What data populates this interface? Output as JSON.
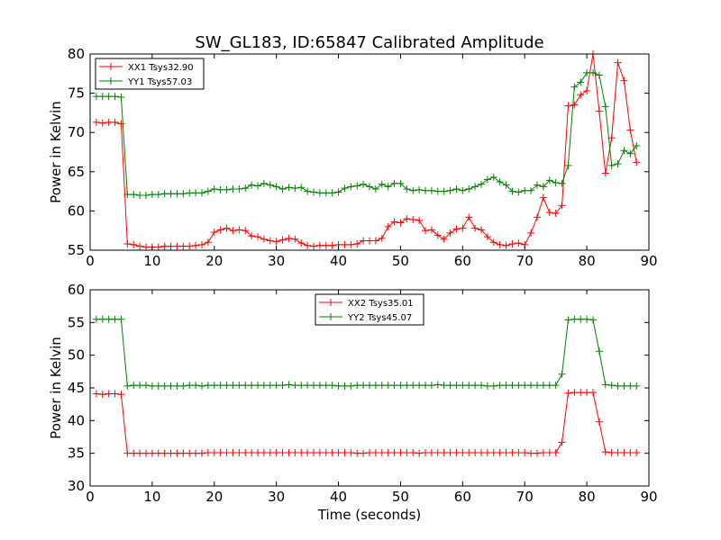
{
  "figure": {
    "title": "SW_GL183, ID:65847 Calibrated Amplitude",
    "xlabel": "Time (seconds)"
  },
  "chart_data": [
    {
      "type": "line",
      "title": "SW_GL183, ID:65847 Calibrated Amplitude",
      "xlabel": "",
      "ylabel": "Power in Kelvin",
      "xlim": [
        0,
        90
      ],
      "ylim": [
        55,
        80
      ],
      "xticks": [
        0,
        10,
        20,
        30,
        40,
        50,
        60,
        70,
        80,
        90
      ],
      "yticks": [
        55,
        60,
        65,
        70,
        75,
        80
      ],
      "grid": false,
      "legend_position": "top-left",
      "x": [
        1,
        2,
        3,
        4,
        5,
        6,
        7,
        8,
        9,
        10,
        11,
        12,
        13,
        14,
        15,
        16,
        17,
        18,
        19,
        20,
        21,
        22,
        23,
        24,
        25,
        26,
        27,
        28,
        29,
        30,
        31,
        32,
        33,
        34,
        35,
        36,
        37,
        38,
        39,
        40,
        41,
        42,
        43,
        44,
        45,
        46,
        47,
        48,
        49,
        50,
        51,
        52,
        53,
        54,
        55,
        56,
        57,
        58,
        59,
        60,
        61,
        62,
        63,
        64,
        65,
        66,
        67,
        68,
        69,
        70,
        71,
        72,
        73,
        74,
        75,
        76,
        77,
        78,
        79,
        80,
        81,
        82,
        83,
        84,
        85,
        86,
        87,
        88
      ],
      "series": [
        {
          "name": "XX1 Tsys32.90",
          "color": "#ff0000",
          "values": [
            71.3,
            71.2,
            71.3,
            71.3,
            71.1,
            55.8,
            55.7,
            55.5,
            55.4,
            55.4,
            55.4,
            55.5,
            55.5,
            55.5,
            55.5,
            55.5,
            55.6,
            55.7,
            56.0,
            57.3,
            57.6,
            57.8,
            57.5,
            57.6,
            57.5,
            56.8,
            56.7,
            56.4,
            56.2,
            56.1,
            56.3,
            56.5,
            56.4,
            55.9,
            55.6,
            55.5,
            55.6,
            55.6,
            55.6,
            55.7,
            55.7,
            55.7,
            55.8,
            56.2,
            56.2,
            56.2,
            56.5,
            58.0,
            58.6,
            58.5,
            59.0,
            58.9,
            58.8,
            57.5,
            57.6,
            56.9,
            56.4,
            57.2,
            57.7,
            57.8,
            59.2,
            57.8,
            57.6,
            56.7,
            56.0,
            55.7,
            55.6,
            55.8,
            55.9,
            55.7,
            57.2,
            59.2,
            61.7,
            59.8,
            59.7,
            60.7,
            73.4,
            73.5,
            74.8,
            75.3,
            80.0,
            72.7,
            64.8,
            69.3,
            78.9,
            76.6,
            70.3,
            66.2
          ]
        },
        {
          "name": "YY1 Tsys57.03",
          "color": "#008000",
          "values": [
            74.6,
            74.6,
            74.6,
            74.6,
            74.5,
            62.1,
            62.1,
            62.0,
            62.0,
            62.1,
            62.1,
            62.2,
            62.2,
            62.2,
            62.2,
            62.3,
            62.3,
            62.3,
            62.5,
            62.8,
            62.7,
            62.7,
            62.8,
            62.8,
            62.9,
            63.3,
            63.2,
            63.5,
            63.3,
            63.1,
            62.8,
            63.0,
            62.9,
            63.0,
            62.5,
            62.4,
            62.3,
            62.3,
            62.3,
            62.4,
            62.9,
            63.1,
            63.2,
            63.4,
            63.1,
            62.8,
            63.4,
            63.1,
            63.5,
            63.5,
            62.8,
            62.6,
            62.7,
            62.6,
            62.6,
            62.5,
            62.5,
            62.6,
            62.8,
            62.6,
            62.8,
            63.1,
            63.4,
            64.0,
            64.3,
            63.7,
            63.3,
            62.5,
            62.4,
            62.6,
            62.6,
            63.3,
            63.1,
            63.9,
            63.6,
            63.5,
            65.8,
            75.8,
            76.4,
            77.6,
            77.6,
            77.3,
            73.3,
            65.8,
            66.0,
            67.7,
            67.3,
            68.3
          ]
        }
      ]
    },
    {
      "type": "line",
      "title": "",
      "xlabel": "Time (seconds)",
      "ylabel": "Power in Kelvin",
      "xlim": [
        0,
        90
      ],
      "ylim": [
        30,
        60
      ],
      "xticks": [
        0,
        10,
        20,
        30,
        40,
        50,
        60,
        70,
        80,
        90
      ],
      "yticks": [
        30,
        35,
        40,
        45,
        50,
        55,
        60
      ],
      "grid": false,
      "legend_position": "top-center",
      "x": [
        1,
        2,
        3,
        4,
        5,
        6,
        7,
        8,
        9,
        10,
        11,
        12,
        13,
        14,
        15,
        16,
        17,
        18,
        19,
        20,
        21,
        22,
        23,
        24,
        25,
        26,
        27,
        28,
        29,
        30,
        31,
        32,
        33,
        34,
        35,
        36,
        37,
        38,
        39,
        40,
        41,
        42,
        43,
        44,
        45,
        46,
        47,
        48,
        49,
        50,
        51,
        52,
        53,
        54,
        55,
        56,
        57,
        58,
        59,
        60,
        61,
        62,
        63,
        64,
        65,
        66,
        67,
        68,
        69,
        70,
        71,
        72,
        73,
        74,
        75,
        76,
        77,
        78,
        79,
        80,
        81,
        82,
        83,
        84,
        85,
        86,
        87,
        88
      ],
      "series": [
        {
          "name": "XX2 Tsys35.01",
          "color": "#ff0000",
          "values": [
            44.1,
            44.0,
            44.1,
            44.1,
            44.0,
            35.0,
            35.0,
            35.0,
            35.0,
            35.0,
            35.0,
            35.0,
            35.0,
            35.0,
            35.0,
            35.0,
            35.0,
            35.0,
            35.1,
            35.1,
            35.1,
            35.1,
            35.1,
            35.1,
            35.1,
            35.1,
            35.1,
            35.1,
            35.1,
            35.1,
            35.1,
            35.1,
            35.1,
            35.1,
            35.1,
            35.1,
            35.1,
            35.1,
            35.1,
            35.1,
            35.1,
            35.1,
            35.0,
            35.0,
            35.1,
            35.1,
            35.1,
            35.1,
            35.1,
            35.1,
            35.1,
            35.1,
            35.0,
            35.1,
            35.1,
            35.1,
            35.1,
            35.1,
            35.1,
            35.1,
            35.1,
            35.1,
            35.1,
            35.1,
            35.1,
            35.1,
            35.1,
            35.1,
            35.1,
            35.1,
            35.0,
            35.0,
            35.1,
            35.1,
            35.1,
            36.7,
            44.2,
            44.3,
            44.3,
            44.3,
            44.3,
            39.8,
            35.2,
            35.1,
            35.1,
            35.1,
            35.1,
            35.1
          ]
        },
        {
          "name": "YY2 Tsys45.07",
          "color": "#008000",
          "values": [
            55.5,
            55.5,
            55.5,
            55.5,
            55.5,
            45.3,
            45.4,
            45.4,
            45.4,
            45.3,
            45.3,
            45.3,
            45.3,
            45.3,
            45.3,
            45.4,
            45.4,
            45.3,
            45.4,
            45.4,
            45.4,
            45.4,
            45.4,
            45.4,
            45.4,
            45.4,
            45.4,
            45.4,
            45.4,
            45.4,
            45.4,
            45.5,
            45.4,
            45.4,
            45.4,
            45.4,
            45.4,
            45.4,
            45.4,
            45.3,
            45.3,
            45.3,
            45.4,
            45.4,
            45.4,
            45.4,
            45.4,
            45.4,
            45.4,
            45.4,
            45.4,
            45.4,
            45.4,
            45.4,
            45.4,
            45.5,
            45.4,
            45.4,
            45.4,
            45.4,
            45.4,
            45.4,
            45.4,
            45.3,
            45.3,
            45.4,
            45.4,
            45.4,
            45.4,
            45.4,
            45.4,
            45.4,
            45.4,
            45.4,
            45.4,
            47.1,
            55.4,
            55.5,
            55.5,
            55.5,
            55.4,
            50.6,
            45.5,
            45.4,
            45.3,
            45.3,
            45.3,
            45.3
          ]
        }
      ]
    }
  ]
}
